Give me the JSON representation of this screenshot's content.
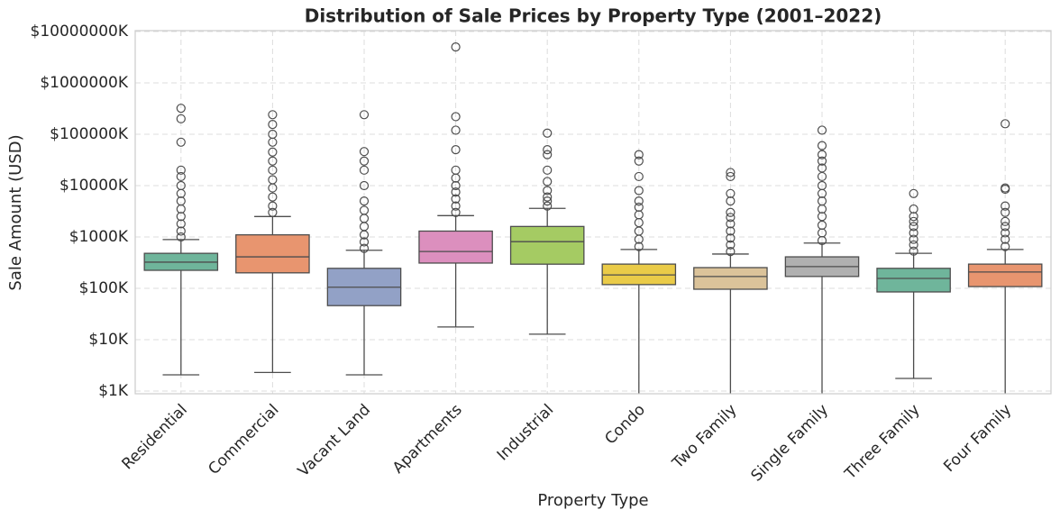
{
  "chart_data": {
    "type": "box",
    "title": "Distribution of Sale Prices by Property Type (2001–2022)",
    "x_label": "Property Type",
    "y_label": "Sale Amount (USD)",
    "log_scale": true,
    "grid": true,
    "categories": [
      "Residential",
      "Commercial",
      "Vacant Land",
      "Apartments",
      "Industrial",
      "Condo",
      "Two Family",
      "Single Family",
      "Three Family",
      "Four Family"
    ],
    "colors": [
      "#6fb59b",
      "#e8956f",
      "#92a1c6",
      "#dc8fbe",
      "#a5cb63",
      "#eacb48",
      "#dbc39a",
      "#b0b0b0",
      "#6fb59b",
      "#e8956f"
    ],
    "whislo": [
      2070,
      2300,
      2070,
      17700,
      12800,
      100,
      100,
      100,
      1760,
      100
    ],
    "q1": [
      224000,
      200000,
      46000,
      310000,
      295000,
      118000,
      96000,
      170000,
      85000,
      108000
    ],
    "median": [
      323000,
      410000,
      105000,
      520000,
      810000,
      182000,
      170000,
      265000,
      156000,
      208000
    ],
    "q3": [
      480000,
      1100000,
      245000,
      1300000,
      1600000,
      296000,
      253000,
      410000,
      245000,
      296000
    ],
    "whishi": [
      890000,
      2500000,
      550000,
      2600000,
      3600000,
      570000,
      465000,
      760000,
      480000,
      570000
    ],
    "fliers": [
      [
        1000000,
        1300000,
        1800000,
        2500000,
        3500000,
        5000000,
        7000000,
        10000000,
        15000000,
        20000000,
        70000000,
        200000000,
        320000000
      ],
      [
        3000000,
        4000000,
        6000000,
        9000000,
        13000000,
        20000000,
        30000000,
        45000000,
        70000000,
        100000000,
        155000000,
        240000000
      ],
      [
        600000,
        800000,
        1100000,
        1600000,
        2300000,
        3300000,
        5000000,
        10000000,
        20000000,
        30000000,
        46000000,
        240000000
      ],
      [
        3000000,
        4000000,
        5500000,
        7500000,
        10000000,
        14000000,
        20000000,
        50000000,
        120000000,
        220000000,
        5000000000
      ],
      [
        4000000,
        5000000,
        6000000,
        8000000,
        12000000,
        20000000,
        40000000,
        50000000,
        105000000
      ],
      [
        650000,
        900000,
        1300000,
        1900000,
        2700000,
        3800000,
        5000000,
        8000000,
        15000000,
        30000000,
        40000000
      ],
      [
        520000,
        700000,
        950000,
        1300000,
        1800000,
        2400000,
        3000000,
        5000000,
        7000000,
        15000000,
        18000000
      ],
      [
        850000,
        1200000,
        1700000,
        2500000,
        3500000,
        5000000,
        7000000,
        10000000,
        15000000,
        22000000,
        30000000,
        40000000,
        60000000,
        120000000
      ],
      [
        530000,
        700000,
        900000,
        1200000,
        1600000,
        2000000,
        2500000,
        3500000,
        7000000
      ],
      [
        650000,
        900000,
        1200000,
        1600000,
        2000000,
        3000000,
        4000000,
        8500000,
        9000000,
        160000000
      ]
    ],
    "ylim": [
      885,
      10400000000
    ],
    "yticks": [
      {
        "value": 1000,
        "label": "$1K"
      },
      {
        "value": 10000,
        "label": "$10K"
      },
      {
        "value": 100000,
        "label": "$100K"
      },
      {
        "value": 1000000,
        "label": "$1000K"
      },
      {
        "value": 10000000,
        "label": "$10000K"
      },
      {
        "value": 100000000,
        "label": "$100000K"
      },
      {
        "value": 1000000000,
        "label": "$1000000K"
      },
      {
        "value": 10000000000,
        "label": "$10000000K"
      }
    ]
  }
}
